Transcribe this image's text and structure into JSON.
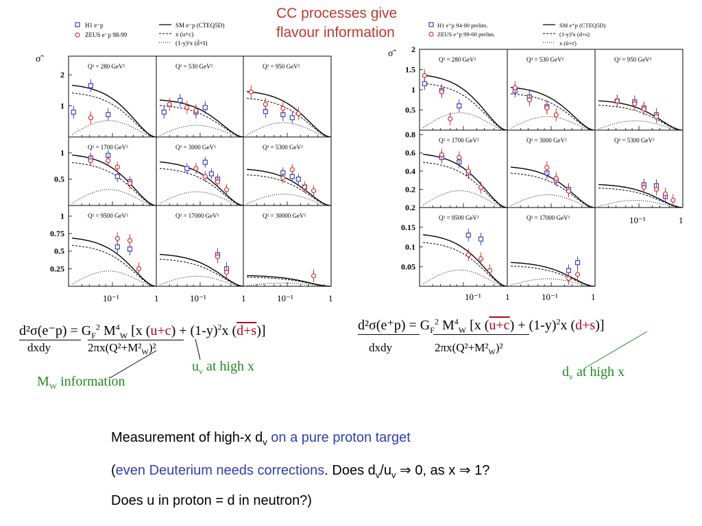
{
  "header": {
    "title_line1": "CC processes give",
    "title_line2": "flavour information"
  },
  "colors": {
    "h1": "#3a3fc0",
    "zeus": "#d23030",
    "title": "#c0392b",
    "green": "#1f8a1f",
    "blue": "#2b3fb0"
  },
  "left_figure": {
    "legend": {
      "h1": "H1 e⁻p",
      "zeus": "ZEUS e⁻p 98-99",
      "sm": "SM e⁻p (CTEQ5D)",
      "dashed": "x (u+c)",
      "dotted": "(1-y)²x (d̄+s̄)"
    },
    "ylabel": "σ̃",
    "xticks": [
      "10⁻¹",
      "1"
    ]
  },
  "right_figure": {
    "legend": {
      "h1": "H1 e⁺p 94-00 prelim.",
      "zeus": "ZEUS e⁺p 99-00 prelim.",
      "sm": "SM e⁺p (CTEQ5D)",
      "dashed": "(1-y)²x (d+s)",
      "dotted": "x (ū+c̄)"
    },
    "ylabel": "σ̃",
    "xticks": [
      "10⁻¹",
      "1"
    ]
  },
  "chart_data": [
    {
      "type": "scatter",
      "title": "Left: e⁻p CC reduced cross section",
      "panels": [
        {
          "label": "Q² = 280 GeV²",
          "yticks": [
            "2",
            "1"
          ],
          "ylim": [
            0,
            2.6
          ],
          "series": [
            {
              "name": "H1 e⁻p",
              "x": [
                0.013,
                0.032,
                0.08
              ],
              "y": [
                0.8,
                1.65,
                0.72
              ]
            },
            {
              "name": "ZEUS e⁻p 98-99",
              "x": [
                0.032
              ],
              "y": [
                0.62
              ]
            }
          ]
        },
        {
          "label": "Q² = 530 GeV²",
          "yticks": [],
          "ylim": [
            0,
            2.6
          ],
          "series": [
            {
              "name": "H1 e⁻p",
              "x": [
                0.015,
                0.035,
                0.08,
                0.13
              ],
              "y": [
                0.8,
                1.18,
                0.8,
                0.95
              ]
            },
            {
              "name": "ZEUS e⁻p 98-99",
              "x": [
                0.02,
                0.05,
                0.08
              ],
              "y": [
                1.05,
                0.95,
                0.85
              ]
            }
          ]
        },
        {
          "label": "Q² = 950 GeV²",
          "yticks": [],
          "ylim": [
            0,
            2.6
          ],
          "series": [
            {
              "name": "H1 e⁻p",
              "x": [
                0.032,
                0.08,
                0.13
              ],
              "y": [
                0.82,
                0.72,
                0.62
              ]
            },
            {
              "name": "ZEUS e⁻p 98-99",
              "x": [
                0.015,
                0.032,
                0.08,
                0.18
              ],
              "y": [
                1.45,
                1.05,
                0.92,
                0.75
              ]
            }
          ]
        },
        {
          "label": "Q² = 1700 GeV²",
          "yticks": [
            "1",
            "0.5"
          ],
          "ylim": [
            0,
            1.3
          ],
          "series": [
            {
              "name": "H1 e⁻p",
              "x": [
                0.032,
                0.08,
                0.13,
                0.25
              ],
              "y": [
                0.9,
                0.95,
                0.55,
                0.45
              ]
            },
            {
              "name": "ZEUS e⁻p 98-99",
              "x": [
                0.032,
                0.08,
                0.13,
                0.25
              ],
              "y": [
                0.85,
                0.85,
                0.73,
                0.42
              ]
            }
          ]
        },
        {
          "label": "Q² = 3000 GeV²",
          "yticks": [],
          "ylim": [
            0,
            1.3
          ],
          "series": [
            {
              "name": "H1 e⁻p",
              "x": [
                0.05,
                0.13,
                0.18,
                0.25
              ],
              "y": [
                0.7,
                0.82,
                0.6,
                0.5
              ]
            },
            {
              "name": "ZEUS e⁻p 98-99",
              "x": [
                0.08,
                0.13,
                0.25,
                0.4
              ],
              "y": [
                0.7,
                0.55,
                0.45,
                0.3
              ]
            }
          ]
        },
        {
          "label": "Q² = 5300 GeV²",
          "yticks": [],
          "ylim": [
            0,
            1.3
          ],
          "series": [
            {
              "name": "H1 e⁻p",
              "x": [
                0.08,
                0.13,
                0.18,
                0.25
              ],
              "y": [
                0.62,
                0.55,
                0.5,
                0.35
              ]
            },
            {
              "name": "ZEUS e⁻p 98-99",
              "x": [
                0.08,
                0.13,
                0.25,
                0.4
              ],
              "y": [
                0.52,
                0.68,
                0.35,
                0.28
              ]
            }
          ]
        },
        {
          "label": "Q² = 9500 GeV²",
          "yticks": [
            "1",
            "0.75",
            "0.5",
            "0.25"
          ],
          "ylim": [
            0,
            1.15
          ],
          "series": [
            {
              "name": "H1 e⁻p",
              "x": [
                0.13,
                0.25
              ],
              "y": [
                0.56,
                0.53
              ]
            },
            {
              "name": "ZEUS e⁻p 98-99",
              "x": [
                0.13,
                0.25,
                0.4
              ],
              "y": [
                0.68,
                0.65,
                0.25
              ]
            }
          ]
        },
        {
          "label": "Q² = 17000 GeV²",
          "yticks": [],
          "ylim": [
            0,
            1.15
          ],
          "series": [
            {
              "name": "H1 e⁻p",
              "x": [
                0.25,
                0.4
              ],
              "y": [
                0.45,
                0.25
              ]
            },
            {
              "name": "ZEUS e⁻p 98-99",
              "x": [
                0.25,
                0.4
              ],
              "y": [
                0.42,
                0.2
              ]
            }
          ]
        },
        {
          "label": "Q² = 30000 GeV²",
          "yticks": [],
          "ylim": [
            0,
            1.15
          ],
          "series": [
            {
              "name": "ZEUS e⁻p 98-99",
              "x": [
                0.4
              ],
              "y": [
                0.15
              ]
            }
          ]
        }
      ]
    },
    {
      "type": "scatter",
      "title": "Right: e⁺p CC reduced cross section",
      "panels": [
        {
          "label": "Q² = 280 GeV²",
          "yticks": [
            "2",
            "1.5",
            "1",
            "0.5"
          ],
          "ylim": [
            0,
            2.0
          ],
          "series": [
            {
              "name": "H1 e⁺p 94-00 prelim.",
              "x": [
                0.013,
                0.032,
                0.08
              ],
              "y": [
                1.15,
                0.98,
                0.6
              ]
            },
            {
              "name": "ZEUS e⁺p 99-00 prelim.",
              "x": [
                0.013,
                0.032,
                0.05
              ],
              "y": [
                1.35,
                0.95,
                0.28
              ]
            }
          ]
        },
        {
          "label": "Q² = 530 GeV²",
          "yticks": [],
          "ylim": [
            0,
            2.0
          ],
          "series": [
            {
              "name": "H1 e⁺p 94-00 prelim.",
              "x": [
                0.015,
                0.032,
                0.08
              ],
              "y": [
                0.97,
                0.82,
                0.58
              ]
            },
            {
              "name": "ZEUS e⁺p 99-00 prelim.",
              "x": [
                0.015,
                0.032,
                0.08,
                0.13
              ],
              "y": [
                1.05,
                0.75,
                0.55,
                0.38
              ]
            }
          ]
        },
        {
          "label": "Q² = 950 GeV²",
          "yticks": [],
          "ylim": [
            0,
            2.0
          ],
          "series": [
            {
              "name": "H1 e⁺p 94-00 prelim.",
              "x": [
                0.032,
                0.08,
                0.13,
                0.25
              ],
              "y": [
                0.72,
                0.7,
                0.55,
                0.38
              ]
            },
            {
              "name": "ZEUS e⁺p 99-00 prelim.",
              "x": [
                0.032,
                0.08,
                0.13,
                0.25
              ],
              "y": [
                0.72,
                0.65,
                0.52,
                0.33
              ]
            }
          ]
        },
        {
          "label": "Q² = 1700 GeV²",
          "yticks": [
            "0.8",
            "0.6",
            "0.4",
            "0.2"
          ],
          "ylim": [
            0,
            0.85
          ],
          "series": [
            {
              "name": "H1 e⁺p 94-00 prelim.",
              "x": [
                0.032,
                0.08,
                0.13
              ],
              "y": [
                0.55,
                0.5,
                0.38
              ]
            },
            {
              "name": "ZEUS e⁺p 99-00 prelim.",
              "x": [
                0.032,
                0.08,
                0.13,
                0.25
              ],
              "y": [
                0.58,
                0.55,
                0.4,
                0.22
              ]
            }
          ]
        },
        {
          "label": "Q² = 3000 GeV²",
          "yticks": [],
          "ylim": [
            0,
            0.85
          ],
          "series": [
            {
              "name": "H1 e⁺p 94-00 prelim.",
              "x": [
                0.08,
                0.13,
                0.25
              ],
              "y": [
                0.38,
                0.3,
                0.2
              ]
            },
            {
              "name": "ZEUS e⁺p 99-00 prelim.",
              "x": [
                0.08,
                0.13,
                0.25
              ],
              "y": [
                0.44,
                0.32,
                0.18
              ]
            }
          ]
        },
        {
          "label": "Q² = 5300 GeV²",
          "yticks": [],
          "ylim": [
            0,
            0.85
          ],
          "series": [
            {
              "name": "H1 e⁺p 94-00 prelim.",
              "x": [
                0.13,
                0.25,
                0.4
              ],
              "y": [
                0.25,
                0.24,
                0.12
              ]
            },
            {
              "name": "ZEUS e⁺p 99-00 prelim.",
              "x": [
                0.13,
                0.25,
                0.4,
                0.6
              ],
              "y": [
                0.22,
                0.2,
                0.15,
                0.08
              ]
            }
          ]
        },
        {
          "label": "Q² = 9500 GeV²",
          "yticks": [
            "0.2",
            "0.15",
            "0.1",
            "0.05"
          ],
          "ylim": [
            0,
            0.2
          ],
          "series": [
            {
              "name": "H1 e⁺p 94-00 prelim.",
              "x": [
                0.13,
                0.25
              ],
              "y": [
                0.13,
                0.12
              ]
            },
            {
              "name": "ZEUS e⁺p 99-00 prelim.",
              "x": [
                0.13,
                0.25,
                0.4
              ],
              "y": [
                0.08,
                0.07,
                0.04
              ]
            }
          ]
        },
        {
          "label": "Q² = 17000 GeV²",
          "yticks": [],
          "ylim": [
            0,
            0.2
          ],
          "series": [
            {
              "name": "H1 e⁺p 94-00 prelim.",
              "x": [
                0.25,
                0.4
              ],
              "y": [
                0.04,
                0.06
              ]
            },
            {
              "name": "ZEUS e⁺p 99-00 prelim.",
              "x": [
                0.25,
                0.4
              ],
              "y": [
                0.02,
                0.03
              ]
            }
          ]
        }
      ]
    }
  ],
  "equations": {
    "left": {
      "lhs_num": "d²σ(e⁻p)",
      "lhs_den": "dxdy",
      "rhs": "= G",
      "rhs_den": "2πx(Q²+M²",
      "rhs_den_sub": "W",
      "rhs_den_end": ")²",
      "F": "F",
      "sup2": "2",
      "M": " M",
      "sup4": "4",
      "W": "W",
      "bracket": " [x (",
      "uc": "u+c",
      "mid": ") + (1-y)",
      "x2": "x (",
      "ds": "d+s",
      "end": ")]"
    },
    "right": {
      "lhs_num": "d²σ(e⁺p)",
      "lhs_den": "dxdy",
      "rhs": "= G",
      "rhs_den": "2πx(Q²+M²",
      "rhs_den_sub": "W",
      "rhs_den_end": ")²",
      "F": "F",
      "sup2": "2",
      "M": " M",
      "sup4": "4",
      "W": "W",
      "bracket": " [x (",
      "uc": "u+c",
      "mid": ") + (1-y)",
      "x2": "x (",
      "ds": "d+s",
      "end": ")]"
    },
    "ann_mw_M": "M",
    "ann_mw_sub": "W",
    "ann_mw_rest": " information",
    "ann_uv_u": "u",
    "ann_uv_sub": "v",
    "ann_uv_rest": " at high x",
    "ann_dv_d": "d",
    "ann_dv_sub": "v",
    "ann_dv_rest": " at high x"
  },
  "notes": {
    "line1_a": "Measurement of high-x d",
    "line1_sub": "v",
    "line1_b": " on a pure proton target",
    "line2_a": "(",
    "line2_b": "even Deuterium needs corrections",
    "line2_c": ". Does d",
    "line2_sub1": "v",
    "line2_d": "/u",
    "line2_sub2": "v",
    "line2_e": " ⇒ 0, as x ⇒ 1?",
    "line3": "Does u in proton = d in neutron?)"
  }
}
